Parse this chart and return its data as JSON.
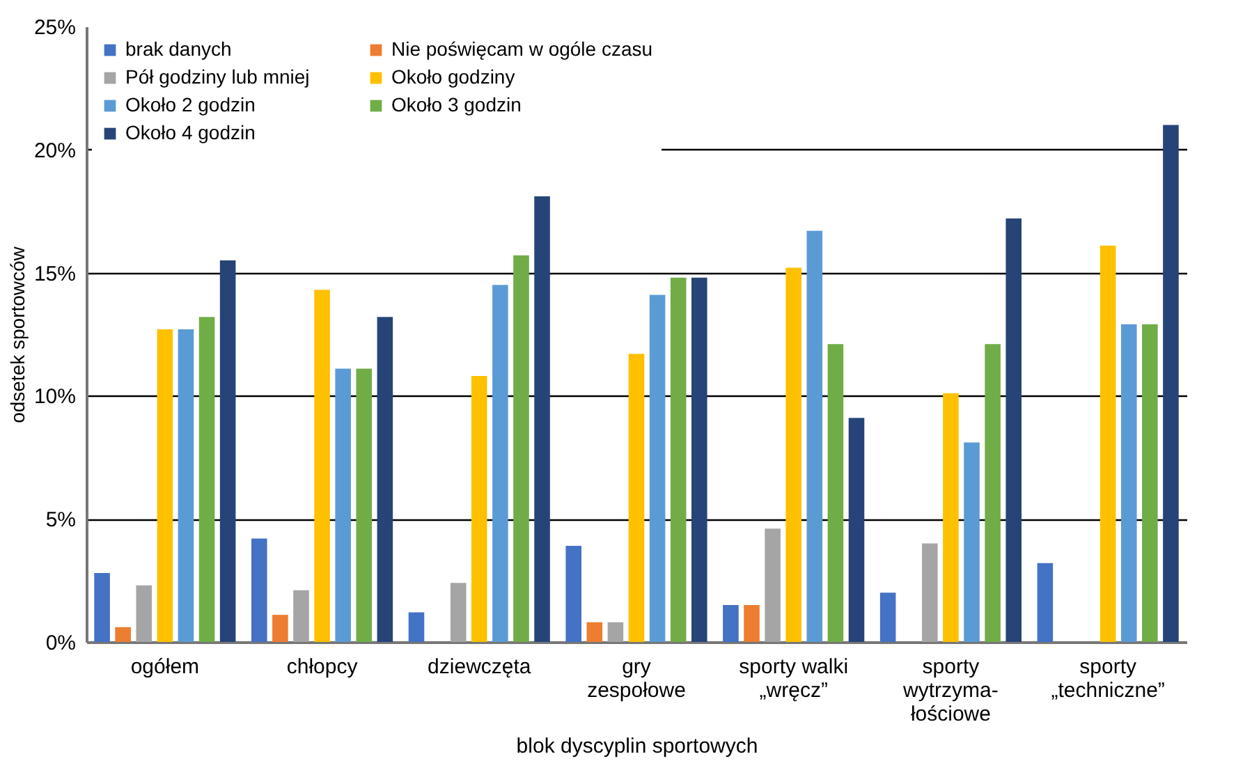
{
  "chart_data": {
    "type": "bar",
    "xlabel": "blok dyscyplin sportowych",
    "ylabel": "odsetek sportowców",
    "categories": [
      "ogółem",
      "chłopcy",
      "dziewczęta",
      "gry\nzespołowe",
      "sporty walki\n„wręcz”",
      "sporty\nwytrzyma-\nłościowe",
      "sporty\n„techniczne”"
    ],
    "series": [
      {
        "name": "brak danych",
        "color": "#4472c4",
        "values": [
          2.8,
          4.2,
          1.2,
          3.9,
          1.5,
          2.0,
          3.2
        ]
      },
      {
        "name": "Nie poświęcam w ogóle czasu",
        "color": "#ed7d31",
        "values": [
          0.6,
          1.1,
          null,
          0.8,
          1.5,
          null,
          null
        ]
      },
      {
        "name": "Pół godziny lub mniej",
        "color": "#a5a5a5",
        "values": [
          2.3,
          2.1,
          2.4,
          0.8,
          4.6,
          4.0,
          null
        ]
      },
      {
        "name": "Około godziny",
        "color": "#ffc000",
        "values": [
          12.7,
          14.3,
          10.8,
          11.7,
          15.2,
          10.1,
          16.1
        ]
      },
      {
        "name": "Około 2 godzin",
        "color": "#5b9bd5",
        "values": [
          12.7,
          11.1,
          14.5,
          14.1,
          16.7,
          8.1,
          12.9
        ]
      },
      {
        "name": "Około 3 godzin",
        "color": "#70ad47",
        "values": [
          13.2,
          11.1,
          15.7,
          14.8,
          12.1,
          12.1,
          12.9
        ]
      },
      {
        "name": "Około 4 godzin",
        "color": "#264478",
        "values": [
          15.5,
          13.2,
          18.1,
          14.8,
          9.1,
          17.2,
          21.0
        ]
      }
    ],
    "ylim": [
      0,
      25
    ],
    "yticks": [
      {
        "value": 0,
        "label": "0%"
      },
      {
        "value": 5,
        "label": "5%"
      },
      {
        "value": 10,
        "label": "10%"
      },
      {
        "value": 15,
        "label": "15%"
      },
      {
        "value": 20,
        "label": "20%"
      },
      {
        "value": 25,
        "label": "25%"
      }
    ],
    "grid": "y",
    "legend": "top left"
  }
}
